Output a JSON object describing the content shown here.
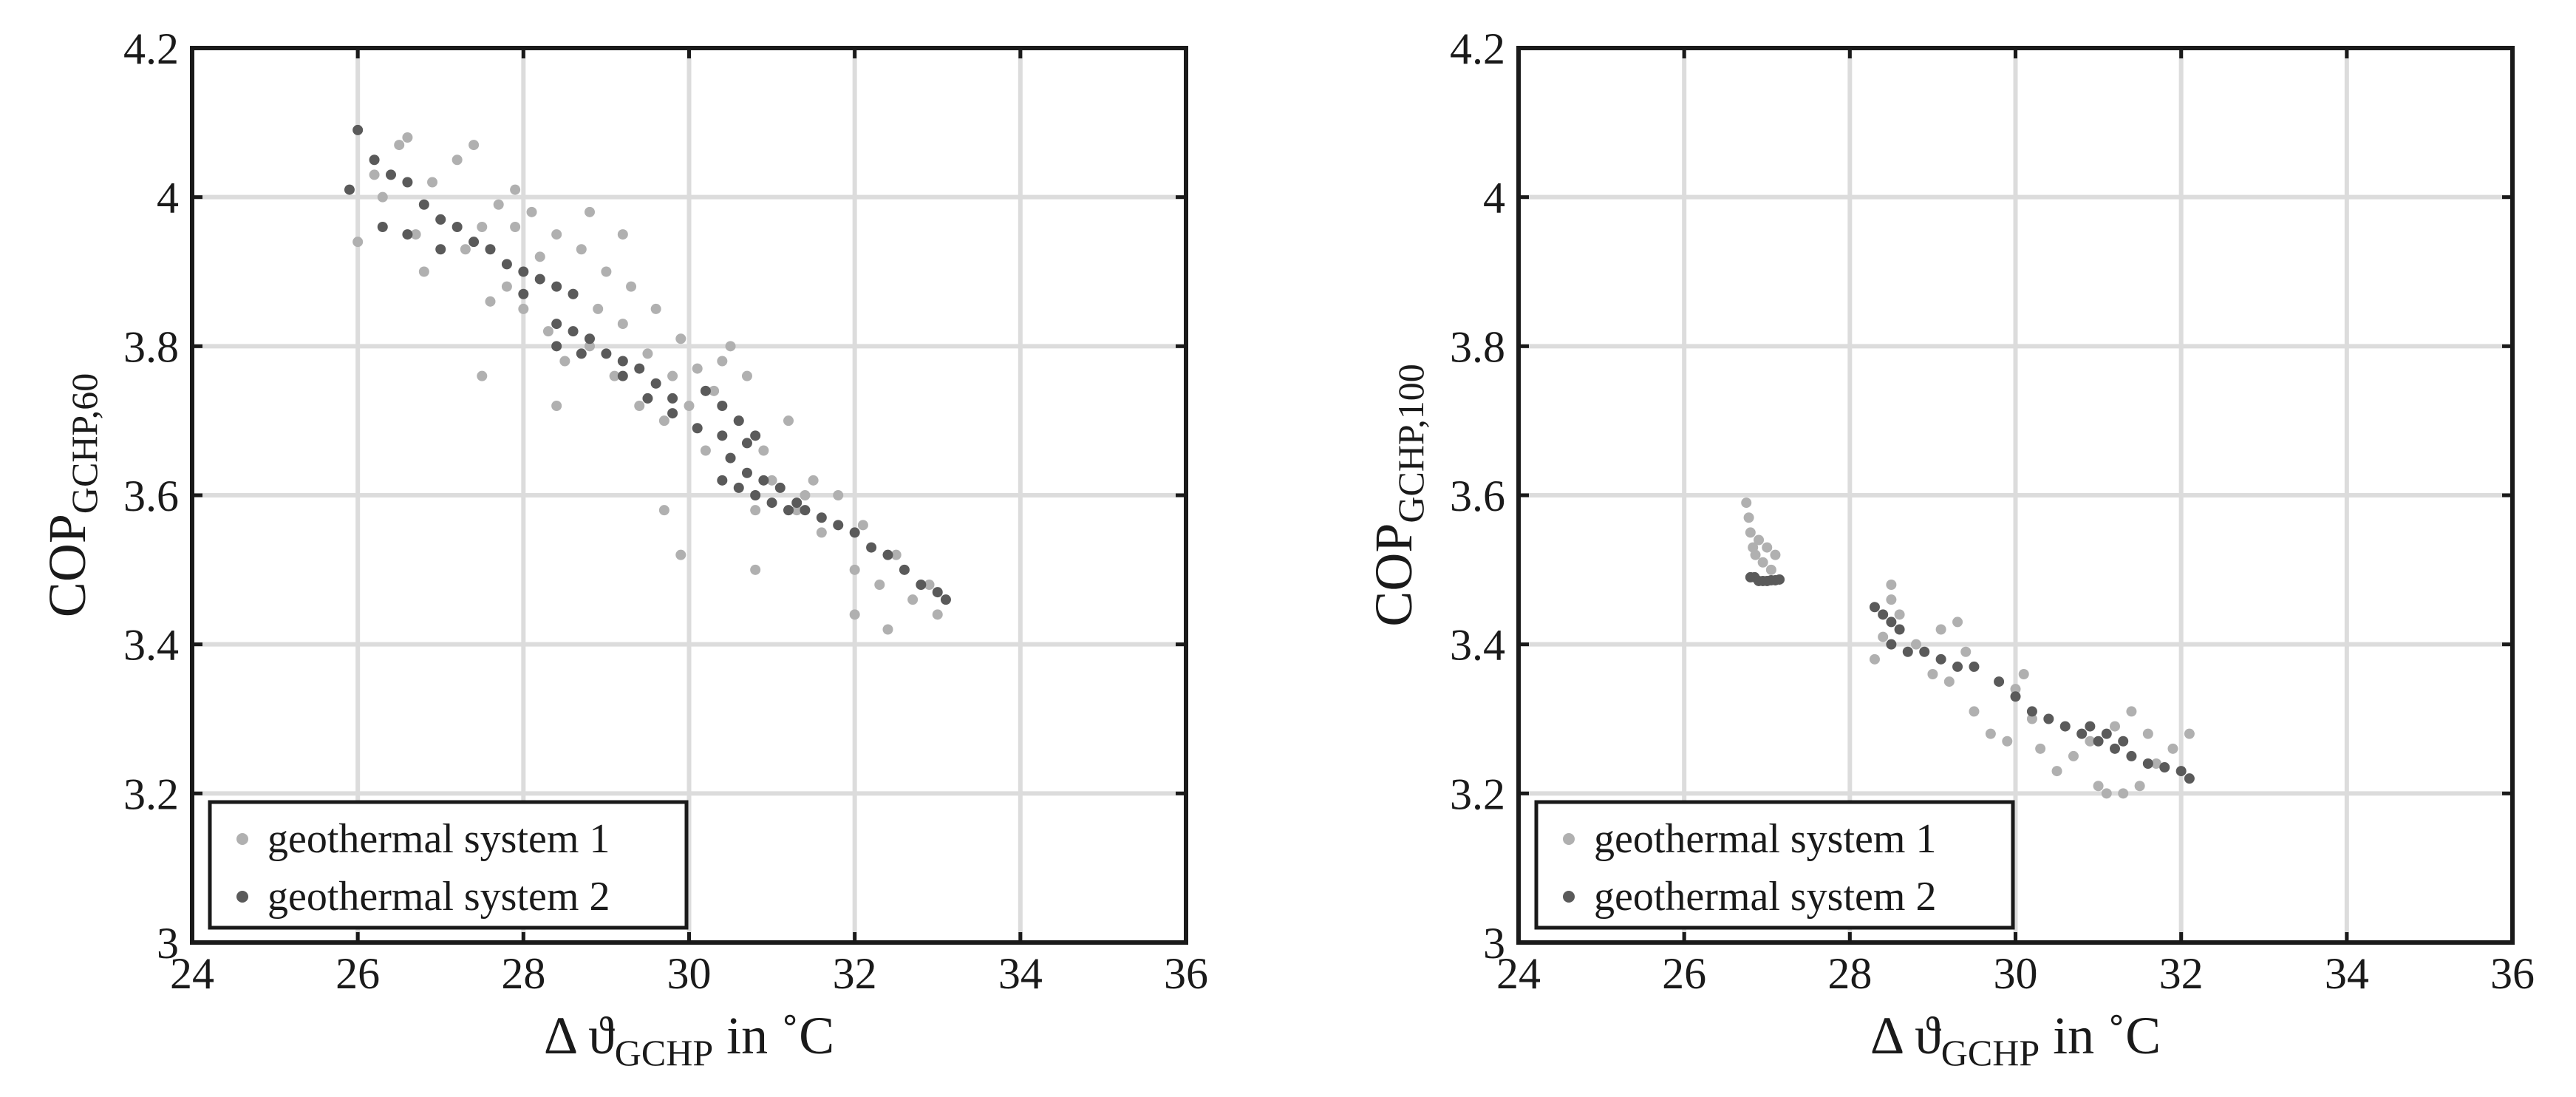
{
  "chart_data": [
    {
      "type": "scatter",
      "xlabel": {
        "main": "Δ ϑ",
        "sub": "GCHP",
        "suffix": " in ˚C"
      },
      "ylabel": {
        "main": "COP",
        "sub": "GCHP,60"
      },
      "xlim": [
        24,
        36
      ],
      "ylim": [
        3,
        4.2
      ],
      "xticks": [
        24,
        26,
        28,
        30,
        32,
        34,
        36
      ],
      "yticks": [
        3,
        3.2,
        3.4,
        3.6,
        3.8,
        4,
        4.2
      ],
      "xtick_labels": [
        "24",
        "26",
        "28",
        "30",
        "32",
        "34",
        "36"
      ],
      "ytick_labels": [
        "3",
        "3.2",
        "3.4",
        "3.6",
        "3.8",
        "4",
        "4.2"
      ],
      "grid": true,
      "legend_position": "bottom-left",
      "series": [
        {
          "name": "geothermal system 1",
          "color": "#b0b0b0",
          "points": [
            [
              26.0,
              3.94
            ],
            [
              26.2,
              4.03
            ],
            [
              26.3,
              4.0
            ],
            [
              26.5,
              4.07
            ],
            [
              26.6,
              4.08
            ],
            [
              26.7,
              3.95
            ],
            [
              26.8,
              3.9
            ],
            [
              26.9,
              4.02
            ],
            [
              27.0,
              3.97
            ],
            [
              27.2,
              4.05
            ],
            [
              27.3,
              3.93
            ],
            [
              27.4,
              4.07
            ],
            [
              27.5,
              3.96
            ],
            [
              27.6,
              3.86
            ],
            [
              27.7,
              3.99
            ],
            [
              27.8,
              3.88
            ],
            [
              27.9,
              3.96
            ],
            [
              28.0,
              3.85
            ],
            [
              28.1,
              3.98
            ],
            [
              28.2,
              3.92
            ],
            [
              28.3,
              3.82
            ],
            [
              28.4,
              3.95
            ],
            [
              28.5,
              3.78
            ],
            [
              28.6,
              3.87
            ],
            [
              28.7,
              3.93
            ],
            [
              28.8,
              3.8
            ],
            [
              28.9,
              3.85
            ],
            [
              29.0,
              3.9
            ],
            [
              29.1,
              3.76
            ],
            [
              29.2,
              3.83
            ],
            [
              29.3,
              3.88
            ],
            [
              29.4,
              3.72
            ],
            [
              29.5,
              3.79
            ],
            [
              29.6,
              3.85
            ],
            [
              29.7,
              3.7
            ],
            [
              29.8,
              3.76
            ],
            [
              29.9,
              3.81
            ],
            [
              30.0,
              3.72
            ],
            [
              30.1,
              3.77
            ],
            [
              30.2,
              3.66
            ],
            [
              30.3,
              3.74
            ],
            [
              30.4,
              3.78
            ],
            [
              30.5,
              3.65
            ],
            [
              30.6,
              3.7
            ],
            [
              30.7,
              3.76
            ],
            [
              30.8,
              3.58
            ],
            [
              30.9,
              3.66
            ],
            [
              31.0,
              3.62
            ],
            [
              31.2,
              3.7
            ],
            [
              31.3,
              3.58
            ],
            [
              31.5,
              3.62
            ],
            [
              31.6,
              3.55
            ],
            [
              31.8,
              3.6
            ],
            [
              32.0,
              3.5
            ],
            [
              32.1,
              3.56
            ],
            [
              32.3,
              3.48
            ],
            [
              32.5,
              3.52
            ],
            [
              32.7,
              3.46
            ],
            [
              32.9,
              3.48
            ],
            [
              33.0,
              3.44
            ],
            [
              28.4,
              3.72
            ],
            [
              27.5,
              3.76
            ],
            [
              29.7,
              3.58
            ],
            [
              29.9,
              3.52
            ],
            [
              30.8,
              3.5
            ],
            [
              32.0,
              3.44
            ],
            [
              32.4,
              3.42
            ],
            [
              29.2,
              3.95
            ],
            [
              30.5,
              3.8
            ],
            [
              31.4,
              3.6
            ],
            [
              28.8,
              3.98
            ],
            [
              27.9,
              4.01
            ]
          ]
        },
        {
          "name": "geothermal system 2",
          "color": "#5a5a5a",
          "points": [
            [
              25.9,
              4.01
            ],
            [
              26.0,
              4.09
            ],
            [
              26.2,
              4.05
            ],
            [
              26.4,
              4.03
            ],
            [
              26.6,
              4.02
            ],
            [
              26.8,
              3.99
            ],
            [
              27.0,
              3.97
            ],
            [
              27.2,
              3.96
            ],
            [
              27.4,
              3.94
            ],
            [
              27.6,
              3.93
            ],
            [
              27.8,
              3.91
            ],
            [
              28.0,
              3.9
            ],
            [
              28.2,
              3.89
            ],
            [
              28.4,
              3.88
            ],
            [
              28.6,
              3.87
            ],
            [
              26.3,
              3.96
            ],
            [
              26.6,
              3.95
            ],
            [
              28.4,
              3.83
            ],
            [
              28.6,
              3.82
            ],
            [
              28.8,
              3.81
            ],
            [
              29.0,
              3.79
            ],
            [
              29.2,
              3.78
            ],
            [
              29.4,
              3.77
            ],
            [
              29.6,
              3.75
            ],
            [
              29.8,
              3.73
            ],
            [
              29.2,
              3.76
            ],
            [
              29.5,
              3.73
            ],
            [
              29.8,
              3.71
            ],
            [
              30.1,
              3.69
            ],
            [
              30.4,
              3.68
            ],
            [
              30.7,
              3.67
            ],
            [
              30.2,
              3.74
            ],
            [
              30.4,
              3.72
            ],
            [
              30.6,
              3.7
            ],
            [
              30.8,
              3.68
            ],
            [
              30.5,
              3.65
            ],
            [
              30.7,
              3.63
            ],
            [
              30.9,
              3.62
            ],
            [
              31.1,
              3.61
            ],
            [
              31.3,
              3.59
            ],
            [
              30.4,
              3.62
            ],
            [
              30.6,
              3.61
            ],
            [
              30.8,
              3.6
            ],
            [
              31.0,
              3.59
            ],
            [
              31.2,
              3.58
            ],
            [
              31.4,
              3.58
            ],
            [
              31.6,
              3.57
            ],
            [
              31.8,
              3.56
            ],
            [
              32.0,
              3.55
            ],
            [
              32.2,
              3.53
            ],
            [
              32.4,
              3.52
            ],
            [
              32.6,
              3.5
            ],
            [
              32.8,
              3.48
            ],
            [
              33.0,
              3.47
            ],
            [
              33.1,
              3.46
            ],
            [
              28.4,
              3.8
            ],
            [
              28.7,
              3.79
            ],
            [
              27.0,
              3.93
            ],
            [
              28.0,
              3.87
            ]
          ]
        }
      ]
    },
    {
      "type": "scatter",
      "xlabel": {
        "main": "Δ ϑ",
        "sub": "GCHP",
        "suffix": " in ˚C"
      },
      "ylabel": {
        "main": "COP",
        "sub": "GCHP,100"
      },
      "xlim": [
        24,
        36
      ],
      "ylim": [
        3,
        4.2
      ],
      "xticks": [
        24,
        26,
        28,
        30,
        32,
        34,
        36
      ],
      "yticks": [
        3,
        3.2,
        3.4,
        3.6,
        3.8,
        4,
        4.2
      ],
      "xtick_labels": [
        "24",
        "26",
        "28",
        "30",
        "32",
        "34",
        "36"
      ],
      "ytick_labels": [
        "3",
        "3.2",
        "3.4",
        "3.6",
        "3.8",
        "4",
        "4.2"
      ],
      "grid": true,
      "legend_position": "bottom-left",
      "series": [
        {
          "name": "geothermal system 1",
          "color": "#b0b0b0",
          "points": [
            [
              26.75,
              3.59
            ],
            [
              26.78,
              3.57
            ],
            [
              26.8,
              3.55
            ],
            [
              26.83,
              3.53
            ],
            [
              26.86,
              3.52
            ],
            [
              26.9,
              3.54
            ],
            [
              26.95,
              3.51
            ],
            [
              27.0,
              3.53
            ],
            [
              27.05,
              3.5
            ],
            [
              27.1,
              3.52
            ],
            [
              28.3,
              3.38
            ],
            [
              28.4,
              3.41
            ],
            [
              28.5,
              3.46
            ],
            [
              28.5,
              3.48
            ],
            [
              28.6,
              3.44
            ],
            [
              28.8,
              3.4
            ],
            [
              29.0,
              3.36
            ],
            [
              29.1,
              3.42
            ],
            [
              29.2,
              3.35
            ],
            [
              29.3,
              3.43
            ],
            [
              29.4,
              3.39
            ],
            [
              29.5,
              3.31
            ],
            [
              29.7,
              3.28
            ],
            [
              29.9,
              3.27
            ],
            [
              30.0,
              3.34
            ],
            [
              30.1,
              3.36
            ],
            [
              30.2,
              3.3
            ],
            [
              30.3,
              3.26
            ],
            [
              30.5,
              3.23
            ],
            [
              30.7,
              3.25
            ],
            [
              30.9,
              3.27
            ],
            [
              31.0,
              3.21
            ],
            [
              31.1,
              3.2
            ],
            [
              31.2,
              3.29
            ],
            [
              31.3,
              3.2
            ],
            [
              31.4,
              3.31
            ],
            [
              31.5,
              3.21
            ],
            [
              31.6,
              3.28
            ],
            [
              31.7,
              3.24
            ],
            [
              31.9,
              3.26
            ],
            [
              32.1,
              3.28
            ]
          ]
        },
        {
          "name": "geothermal system 2",
          "color": "#5a5a5a",
          "points": [
            [
              26.8,
              3.49
            ],
            [
              26.85,
              3.49
            ],
            [
              26.9,
              3.485
            ],
            [
              26.95,
              3.485
            ],
            [
              27.0,
              3.485
            ],
            [
              27.05,
              3.486
            ],
            [
              27.1,
              3.486
            ],
            [
              27.15,
              3.487
            ],
            [
              28.3,
              3.45
            ],
            [
              28.4,
              3.44
            ],
            [
              28.5,
              3.43
            ],
            [
              28.6,
              3.42
            ],
            [
              28.5,
              3.4
            ],
            [
              28.7,
              3.39
            ],
            [
              28.9,
              3.39
            ],
            [
              29.1,
              3.38
            ],
            [
              29.3,
              3.37
            ],
            [
              29.5,
              3.37
            ],
            [
              29.8,
              3.35
            ],
            [
              30.0,
              3.33
            ],
            [
              30.2,
              3.31
            ],
            [
              30.4,
              3.3
            ],
            [
              30.6,
              3.29
            ],
            [
              30.8,
              3.28
            ],
            [
              31.0,
              3.27
            ],
            [
              31.2,
              3.26
            ],
            [
              31.4,
              3.25
            ],
            [
              31.6,
              3.24
            ],
            [
              31.8,
              3.235
            ],
            [
              32.0,
              3.23
            ],
            [
              32.1,
              3.22
            ],
            [
              30.9,
              3.29
            ],
            [
              31.1,
              3.28
            ],
            [
              31.3,
              3.27
            ]
          ]
        }
      ]
    }
  ]
}
